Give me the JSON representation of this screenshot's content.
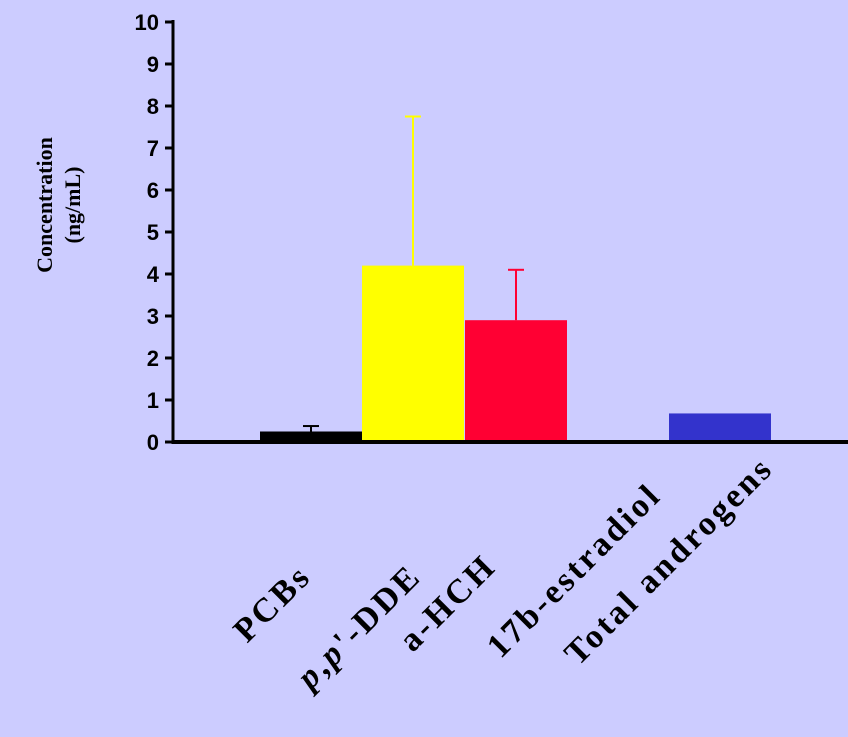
{
  "chart_data": {
    "type": "bar",
    "title": "",
    "xlabel": "",
    "ylabel": [
      "Concentration",
      "(ng/mL)"
    ],
    "ylim": [
      0,
      10
    ],
    "yticks": [
      0,
      1,
      2,
      3,
      4,
      5,
      6,
      7,
      8,
      9,
      10
    ],
    "categories": [
      "PCBs",
      "p,p'-DDE",
      "a-HCH",
      "17b-estradiol",
      "Total androgens"
    ],
    "category_label_parts": [
      [
        {
          "text": "PCBs",
          "italic": false
        }
      ],
      [
        {
          "text": "p",
          "italic": true
        },
        {
          "text": ",",
          "italic": false
        },
        {
          "text": "p",
          "italic": true
        },
        {
          "text": "'-DDE",
          "italic": false
        }
      ],
      [
        {
          "text": "a",
          "italic": false
        },
        {
          "text": "-HCH",
          "italic": false
        }
      ],
      [
        {
          "text": "17b-estradiol",
          "italic": false
        }
      ],
      [
        {
          "text": "Total androgens",
          "italic": false
        }
      ]
    ],
    "values": [
      0.25,
      4.2,
      2.9,
      0.0,
      0.68
    ],
    "error_upper": [
      0.38,
      7.75,
      4.1,
      null,
      null
    ],
    "colors": [
      "#000000",
      "#FFFF00",
      "#FF0033",
      "#CCCCFF",
      "#3333CC"
    ],
    "grid": false,
    "legend": "none"
  }
}
